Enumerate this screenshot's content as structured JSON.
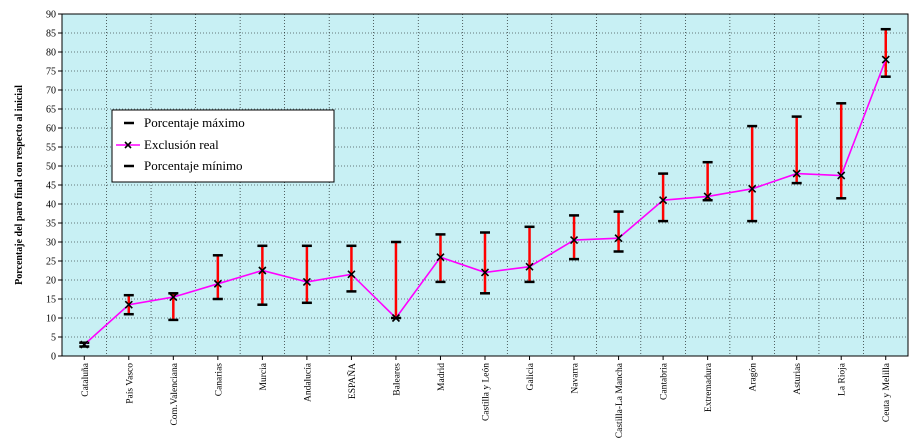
{
  "chart_data": {
    "type": "line",
    "title": "",
    "xlabel": "",
    "ylabel": "Porcentaje del paro final con respecto al inicial",
    "ylim": [
      0,
      90
    ],
    "yticks": [
      0,
      5,
      10,
      15,
      20,
      25,
      30,
      35,
      40,
      45,
      50,
      55,
      60,
      65,
      70,
      75,
      80,
      85,
      90
    ],
    "grid": true,
    "legend_position": "left",
    "categories": [
      "Cataluña",
      "País Vasco",
      "Com.Valenciana",
      "Canarias",
      "Murcia",
      "Andalucía",
      "ESPAÑA",
      "Baleares",
      "Madrid",
      "Castilla y León",
      "Galicia",
      "Navarra",
      "Castilla-La Mancha",
      "Cantabria",
      "Extremadura",
      "Aragón",
      "Asturias",
      "La Rioja",
      "Ceuta y Melilla"
    ],
    "series": [
      {
        "name": "Porcentaje máximo",
        "values": [
          3.5,
          16,
          16.5,
          26.5,
          29,
          29,
          29,
          30,
          32,
          32.5,
          34,
          37,
          38,
          48,
          51,
          60.5,
          63,
          66.5,
          86
        ]
      },
      {
        "name": "Exclusión real",
        "values": [
          3,
          13.5,
          15.5,
          19,
          22.5,
          19.5,
          21.5,
          10,
          26,
          22,
          23.5,
          30.5,
          31,
          41,
          42,
          44,
          48,
          47.5,
          78
        ]
      },
      {
        "name": "Porcentaje mínimo",
        "values": [
          2.5,
          11,
          9.5,
          15,
          13.5,
          14,
          17,
          10,
          19.5,
          16.5,
          19.5,
          25.5,
          27.5,
          35.5,
          41,
          35.5,
          45.5,
          41.5,
          73.5
        ]
      }
    ],
    "colors": {
      "background": "#c8f0f4",
      "line": "#ff00ff",
      "error_bar": "#ff0000",
      "marker": "#000000",
      "grid": "#000000"
    }
  }
}
